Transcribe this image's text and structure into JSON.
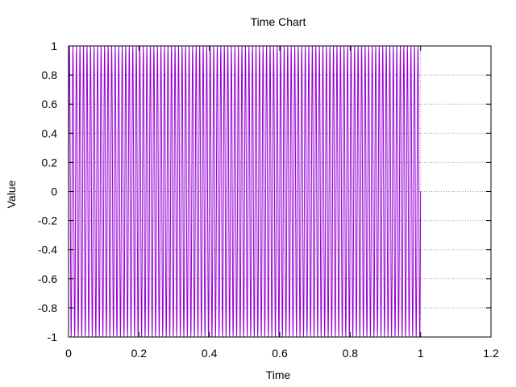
{
  "chart_data": {
    "type": "line",
    "title": "Time Chart",
    "xlabel": "Time",
    "ylabel": "Value",
    "xlim": [
      0,
      1.2
    ],
    "ylim": [
      -1,
      1
    ],
    "x_ticks": [
      "0",
      "0.2",
      "0.4",
      "0.6",
      "0.8",
      "1",
      "1.2"
    ],
    "y_ticks": [
      "1",
      "0.8",
      "0.6",
      "0.4",
      "0.2",
      "0",
      "-0.2",
      "-0.4",
      "-0.6",
      "-0.8",
      "-1"
    ],
    "grid": true,
    "legend": "none",
    "series": [
      {
        "color": "#9400d3",
        "signal": "sine",
        "frequency_hz": 100,
        "amplitude": 1,
        "x_start": 0,
        "x_end": 1
      }
    ]
  }
}
